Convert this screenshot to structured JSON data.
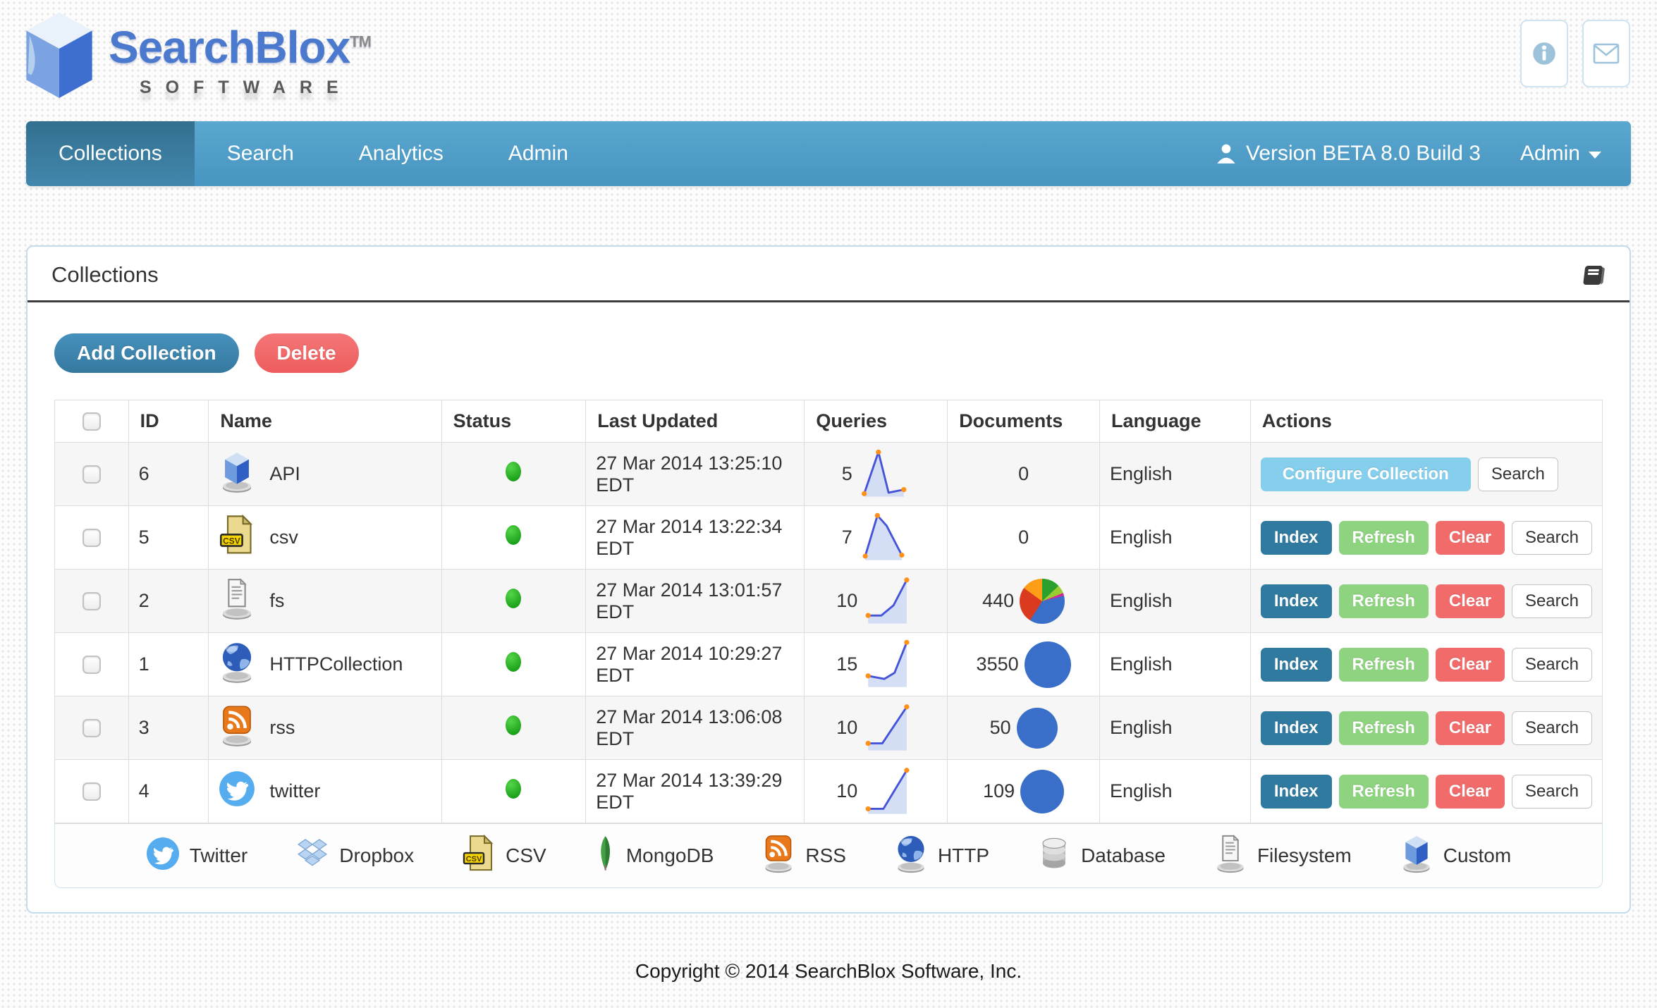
{
  "topbar": {
    "brand": "SearchBlox",
    "trademark": "TM",
    "brand_subtitle": "SOFTWARE",
    "icons": [
      {
        "name": "info-icon"
      },
      {
        "name": "mail-icon"
      }
    ]
  },
  "navbar": {
    "tabs": [
      {
        "label": "Collections",
        "active": true
      },
      {
        "label": "Search",
        "active": false
      },
      {
        "label": "Analytics",
        "active": false
      },
      {
        "label": "Admin",
        "active": false
      }
    ],
    "version_label": "Version BETA 8.0 Build 3",
    "user_menu_label": "Admin"
  },
  "panel": {
    "title": "Collections",
    "toolbar": {
      "add_label": "Add Collection",
      "delete_label": "Delete"
    },
    "table": {
      "headers": [
        "",
        "ID",
        "Name",
        "Status",
        "Last Updated",
        "Queries",
        "Documents",
        "Language",
        "Actions"
      ],
      "rows": [
        {
          "id": "6",
          "name": "API",
          "icon": "custom",
          "status": "active",
          "last_updated": "27 Mar 2014 13:25:10 EDT",
          "queries": "5",
          "documents": "0",
          "language": "English",
          "sparkline": {
            "points": [
              [
                12,
                88
              ],
              [
                40,
                6
              ],
              [
                60,
                86
              ],
              [
                90,
                80
              ]
            ],
            "dots": [
              0,
              1,
              3
            ]
          },
          "pie": null,
          "actions": [
            {
              "label": "Configure Collection",
              "variant": "configure"
            },
            {
              "label": "Search",
              "variant": "search"
            }
          ]
        },
        {
          "id": "5",
          "name": "csv",
          "icon": "csv",
          "status": "active",
          "last_updated": "27 Mar 2014 13:22:34 EDT",
          "queries": "7",
          "documents": "0",
          "language": "English",
          "sparkline": {
            "points": [
              [
                14,
                86
              ],
              [
                38,
                6
              ],
              [
                56,
                26
              ],
              [
                86,
                84
              ]
            ],
            "dots": [
              0,
              1,
              3
            ]
          },
          "pie": null,
          "actions": [
            {
              "label": "Index",
              "variant": "index"
            },
            {
              "label": "Refresh",
              "variant": "refresh"
            },
            {
              "label": "Clear",
              "variant": "clear"
            },
            {
              "label": "Search",
              "variant": "search"
            }
          ]
        },
        {
          "id": "2",
          "name": "fs",
          "icon": "filesystem",
          "status": "active",
          "last_updated": "27 Mar 2014 13:01:57 EDT",
          "queries": "10",
          "documents": "440",
          "language": "English",
          "sparkline": {
            "points": [
              [
                10,
                78
              ],
              [
                36,
                78
              ],
              [
                60,
                58
              ],
              [
                86,
                8
              ]
            ],
            "dots": [
              0,
              3
            ]
          },
          "pie": {
            "kind": "multi",
            "size": 64,
            "segments": [
              {
                "color": "#2ca02c",
                "pct": 13
              },
              {
                "color": "#9acd32",
                "pct": 6
              },
              {
                "color": "#d62798",
                "pct": 2
              },
              {
                "color": "#3a6fc9",
                "pct": 38
              },
              {
                "color": "#d93a20",
                "pct": 26
              },
              {
                "color": "#ff9d17",
                "pct": 15
              }
            ]
          },
          "actions": [
            {
              "label": "Index",
              "variant": "index"
            },
            {
              "label": "Refresh",
              "variant": "refresh"
            },
            {
              "label": "Clear",
              "variant": "clear"
            },
            {
              "label": "Search",
              "variant": "search"
            }
          ]
        },
        {
          "id": "1",
          "name": "HTTPCollection",
          "icon": "http",
          "status": "active",
          "last_updated": "27 Mar 2014 10:29:27 EDT",
          "queries": "15",
          "documents": "3550",
          "language": "English",
          "sparkline": {
            "points": [
              [
                10,
                72
              ],
              [
                42,
                78
              ],
              [
                62,
                66
              ],
              [
                86,
                6
              ]
            ],
            "dots": [
              0,
              3
            ]
          },
          "pie": {
            "kind": "solid",
            "size": 66,
            "color": "#3a6fc9"
          },
          "actions": [
            {
              "label": "Index",
              "variant": "index"
            },
            {
              "label": "Refresh",
              "variant": "refresh"
            },
            {
              "label": "Clear",
              "variant": "clear"
            },
            {
              "label": "Search",
              "variant": "search"
            }
          ]
        },
        {
          "id": "3",
          "name": "rss",
          "icon": "rss",
          "status": "active",
          "last_updated": "27 Mar 2014 13:06:08 EDT",
          "queries": "10",
          "documents": "50",
          "language": "English",
          "sparkline": {
            "points": [
              [
                10,
                80
              ],
              [
                38,
                80
              ],
              [
                86,
                8
              ]
            ],
            "dots": [
              0,
              2
            ]
          },
          "pie": {
            "kind": "solid",
            "size": 58,
            "color": "#3a6fc9"
          },
          "actions": [
            {
              "label": "Index",
              "variant": "index"
            },
            {
              "label": "Refresh",
              "variant": "refresh"
            },
            {
              "label": "Clear",
              "variant": "clear"
            },
            {
              "label": "Search",
              "variant": "search"
            }
          ]
        },
        {
          "id": "4",
          "name": "twitter",
          "icon": "twitter",
          "status": "active",
          "last_updated": "27 Mar 2014 13:39:29 EDT",
          "queries": "10",
          "documents": "109",
          "language": "English",
          "sparkline": {
            "points": [
              [
                10,
                84
              ],
              [
                40,
                84
              ],
              [
                86,
                8
              ]
            ],
            "dots": [
              0,
              2
            ]
          },
          "pie": {
            "kind": "solid",
            "size": 62,
            "color": "#3a6fc9"
          },
          "actions": [
            {
              "label": "Index",
              "variant": "index"
            },
            {
              "label": "Refresh",
              "variant": "refresh"
            },
            {
              "label": "Clear",
              "variant": "clear"
            },
            {
              "label": "Search",
              "variant": "search"
            }
          ]
        }
      ],
      "legend": [
        {
          "icon": "twitter",
          "label": "Twitter"
        },
        {
          "icon": "dropbox",
          "label": "Dropbox"
        },
        {
          "icon": "csv",
          "label": "CSV"
        },
        {
          "icon": "mongodb",
          "label": "MongoDB"
        },
        {
          "icon": "rss",
          "label": "RSS"
        },
        {
          "icon": "http",
          "label": "HTTP"
        },
        {
          "icon": "database",
          "label": "Database"
        },
        {
          "icon": "filesystem",
          "label": "Filesystem"
        },
        {
          "icon": "custom",
          "label": "Custom"
        }
      ]
    }
  },
  "footer": {
    "copyright": "Copyright © 2014 SearchBlox Software, Inc."
  },
  "colors": {
    "navbar": "#4c9fc9",
    "navbar_active": "#33708f",
    "add_button": "#3d88b4",
    "delete_button": "#f2696a",
    "configure_button": "#85cfec",
    "index_button": "#30799f",
    "refresh_button": "#8ed37f",
    "clear_button": "#f16b6b",
    "status_ok": "#2db22d",
    "spark_line": "#4553d8",
    "spark_dot": "#ff9018",
    "documents_pie": "#3a6fc9"
  }
}
